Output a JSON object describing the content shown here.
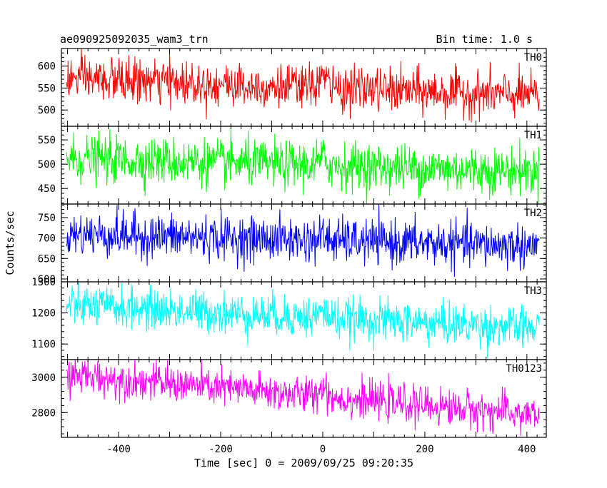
{
  "header": {
    "title": "ae090925092035_wam3_trn",
    "bin_time": "Bin time: 1.0 s"
  },
  "chart_data": {
    "type": "line",
    "title": "ae090925092035_wam3_trn",
    "subtitle": "Bin time: 1.0 s",
    "xlabel": "Time [sec] 0 = 2009/09/25 09:20:35",
    "ylabel": "Counts/sec",
    "xlim": [
      -512,
      438
    ],
    "x_start": -502,
    "x_end": 424,
    "x_step": 1,
    "x_ticks": [
      -400,
      -200,
      0,
      200,
      400
    ],
    "grid": false,
    "panels": [
      {
        "name": "TH0",
        "color": "#ff0000",
        "ylim": [
          463,
          640
        ],
        "y_ticks": [
          500,
          550,
          600
        ],
        "mean_start": 572,
        "mean_end": 532,
        "noise_sd": 25,
        "bumps": [
          {
            "center": 0,
            "width": 12,
            "height": 25
          }
        ]
      },
      {
        "name": "TH1",
        "color": "#00ff00",
        "ylim": [
          418,
          578
        ],
        "y_ticks": [
          450,
          500,
          550
        ],
        "mean_start": 512,
        "mean_end": 485,
        "noise_sd": 24,
        "bumps": [
          {
            "center": 0,
            "width": 12,
            "height": 12
          }
        ]
      },
      {
        "name": "TH2",
        "color": "#0000ff",
        "ylim": [
          593,
          783
        ],
        "y_ticks": [
          600,
          650,
          700,
          750
        ],
        "mean_start": 710,
        "mean_end": 680,
        "noise_sd": 27,
        "bumps": [
          {
            "center": 0,
            "width": 12,
            "height": 10
          }
        ]
      },
      {
        "name": "TH3",
        "color": "#00ffff",
        "ylim": [
          1050,
          1300
        ],
        "y_ticks": [
          1100,
          1200,
          1300
        ],
        "mean_start": 1225,
        "mean_end": 1150,
        "noise_sd": 33,
        "bumps": [
          {
            "center": 0,
            "width": 12,
            "height": 20
          }
        ]
      },
      {
        "name": "TH0123",
        "color": "#ff00ff",
        "ylim": [
          2660,
          3100
        ],
        "y_ticks": [
          2800,
          3000
        ],
        "mean_start": 3015,
        "mean_end": 2785,
        "noise_sd": 52,
        "bumps": [
          {
            "center": 0,
            "width": 12,
            "height": 60
          }
        ]
      }
    ]
  }
}
